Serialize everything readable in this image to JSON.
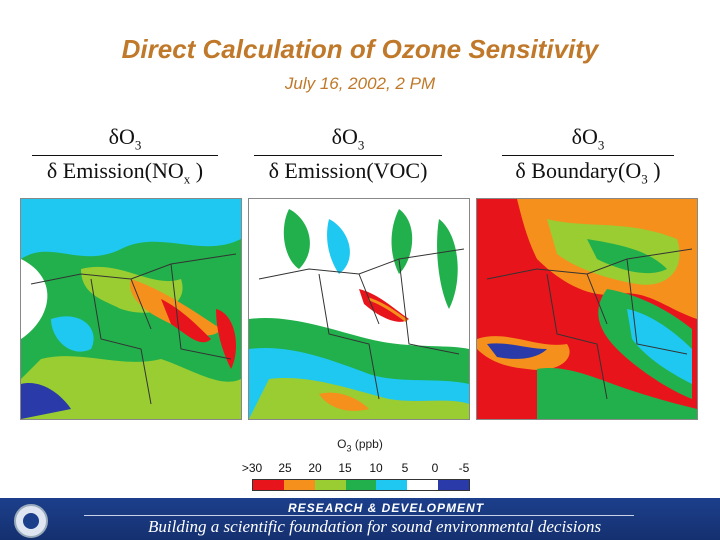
{
  "title": "Direct Calculation of Ozone Sensitivity",
  "subtitle": "July 16, 2002, 2 PM",
  "panels": [
    {
      "numerator": "δO",
      "numerator_sub": "3",
      "denominator": "δ Emission(NO",
      "denominator_sub": "x",
      "denominator_tail": " )"
    },
    {
      "numerator": "δO",
      "numerator_sub": "3",
      "denominator": "δ Emission(VOC)",
      "denominator_sub": "",
      "denominator_tail": ""
    },
    {
      "numerator": "δO",
      "numerator_sub": "3",
      "denominator": "δ Boundary(O",
      "denominator_sub": "3",
      "denominator_tail": " )"
    }
  ],
  "legend": {
    "unit_main": "O",
    "unit_sub": "3",
    "unit_tail": " (ppb)",
    "ticks": [
      ">30",
      "25",
      "20",
      "15",
      "10",
      "5",
      "0",
      "-5"
    ],
    "colors": [
      "#e8141c",
      "#f5901c",
      "#9acd32",
      "#22b04c",
      "#1ec8f0",
      "#ffffff",
      "#2a3aa8"
    ]
  },
  "footer": {
    "program": "RESEARCH & DEVELOPMENT",
    "tagline": "Building a scientific foundation for sound environmental decisions"
  }
}
